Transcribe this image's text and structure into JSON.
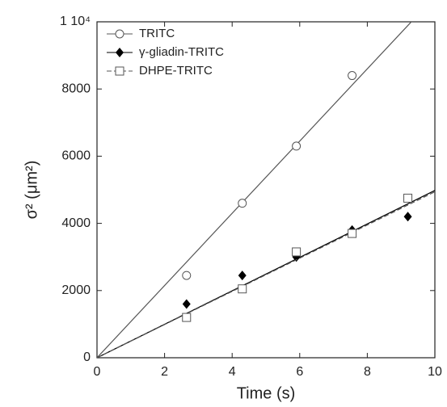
{
  "chart_data": {
    "type": "scatter",
    "xlabel": "Time (s)",
    "ylabel": "σ² (μm²)",
    "xlim": [
      0,
      10
    ],
    "ylim": [
      0,
      10000
    ],
    "xticks": [
      0,
      2,
      4,
      6,
      8,
      10
    ],
    "yticks": [
      0,
      2000,
      4000,
      6000,
      8000,
      {
        "value": 10000,
        "label": "1 10⁴"
      }
    ],
    "legend": "upper left",
    "series": [
      {
        "name": "TRITC",
        "color": "#555555",
        "marker": "circle",
        "dash": false,
        "x": [
          2.65,
          4.3,
          5.9,
          7.55
        ],
        "values": [
          2450,
          4600,
          6300,
          8400
        ],
        "fit": {
          "x": [
            0,
            10
          ],
          "y": [
            0,
            10750
          ]
        }
      },
      {
        "name": "γ-gliadin-TRITC",
        "color": "#000000",
        "marker": "diamond",
        "dash": false,
        "x": [
          2.65,
          4.3,
          5.9,
          7.55,
          9.2
        ],
        "values": [
          1600,
          2450,
          3000,
          3800,
          4200
        ],
        "fit": {
          "x": [
            0,
            10
          ],
          "y": [
            0,
            4980
          ]
        }
      },
      {
        "name": "DHPE-TRITC",
        "color": "#555555",
        "marker": "square",
        "dash": true,
        "x": [
          2.65,
          4.3,
          5.9,
          7.55,
          9.2
        ],
        "values": [
          1200,
          2050,
          3150,
          3700,
          4750
        ],
        "fit": {
          "x": [
            0,
            10
          ],
          "y": [
            0,
            4940
          ]
        }
      }
    ]
  }
}
